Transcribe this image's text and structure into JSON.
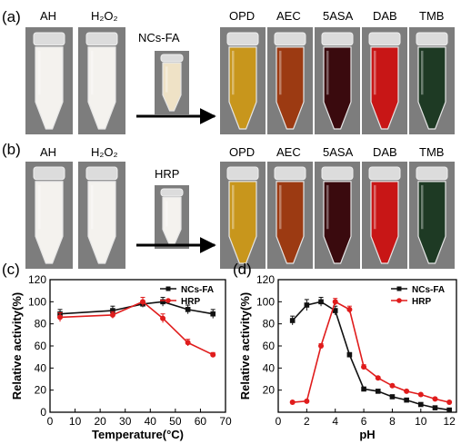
{
  "panel_a": {
    "label": "(a)",
    "tube_labels": [
      "AH",
      "H₂O₂"
    ],
    "reagent_label": "NCs-FA",
    "product_labels": [
      "OPD",
      "AEC",
      "5ASA",
      "DAB",
      "TMB"
    ]
  },
  "panel_b": {
    "label": "(b)",
    "tube_labels": [
      "AH",
      "H₂O₂"
    ],
    "reagent_label": "HRP",
    "product_labels": [
      "OPD",
      "AEC",
      "5ASA",
      "DAB",
      "TMB"
    ]
  },
  "colors": {
    "opd": "#c8961c",
    "aec": "#9c3a12",
    "asa": "#3a0a0e",
    "dab": "#c81616",
    "tmb": "#1e3a24",
    "clear_liquid": "#f4f2ee",
    "ncs_fa_liquid": "#efe2c6",
    "photo_background": "#7d7d7d",
    "ncs_fa_series": "#111111",
    "hrp_series": "#e01c1c"
  },
  "chart_data": [
    {
      "type": "line",
      "panel_label": "(c)",
      "xlabel": "Temperature(°C)",
      "ylabel": "Relative activity(%)",
      "xlim": [
        0,
        70
      ],
      "ylim": [
        0,
        120
      ],
      "xticks": [
        0,
        10,
        20,
        30,
        40,
        50,
        60,
        70
      ],
      "yticks": [
        0,
        20,
        40,
        60,
        80,
        100,
        120
      ],
      "legend_position": "top-right",
      "series": [
        {
          "name": "NCs-FA",
          "color": "#111111",
          "marker": "square",
          "x": [
            4,
            25,
            37,
            45,
            55,
            65
          ],
          "y": [
            89,
            92,
            98,
            100,
            93,
            89
          ],
          "err": [
            4,
            4,
            3,
            4,
            4,
            4
          ]
        },
        {
          "name": "HRP",
          "color": "#e01c1c",
          "marker": "circle",
          "x": [
            4,
            25,
            37,
            45,
            55,
            65
          ],
          "y": [
            86,
            88,
            100,
            85,
            63,
            52
          ],
          "err": [
            4,
            3,
            4,
            4,
            3,
            2
          ]
        }
      ]
    },
    {
      "type": "line",
      "panel_label": "(d)",
      "xlabel": "pH",
      "ylabel": "Relative activity(%)",
      "xlim": [
        0,
        12.5
      ],
      "ylim": [
        0,
        120
      ],
      "xticks": [
        0,
        2,
        4,
        6,
        8,
        10,
        12
      ],
      "yticks": [
        20,
        40,
        60,
        80,
        100,
        120
      ],
      "legend_position": "top-right",
      "series": [
        {
          "name": "NCs-FA",
          "color": "#111111",
          "marker": "square",
          "x": [
            1,
            2,
            3,
            4,
            5,
            6,
            7,
            8,
            9,
            10,
            11,
            12
          ],
          "y": [
            83,
            97,
            100,
            92,
            52,
            21,
            19,
            14,
            11,
            7,
            4,
            2
          ],
          "err": [
            4,
            5,
            4,
            4,
            2,
            1,
            1,
            1,
            1,
            1,
            1,
            1
          ]
        },
        {
          "name": "HRP",
          "color": "#e01c1c",
          "marker": "circle",
          "x": [
            1,
            2,
            3,
            4,
            5,
            6,
            7,
            8,
            9,
            10,
            11,
            12
          ],
          "y": [
            9,
            10,
            60,
            100,
            93,
            41,
            31,
            24,
            19,
            16,
            12,
            9
          ],
          "err": [
            1,
            1,
            2,
            3,
            3,
            2,
            1,
            1,
            1,
            1,
            1,
            1
          ]
        }
      ]
    }
  ]
}
